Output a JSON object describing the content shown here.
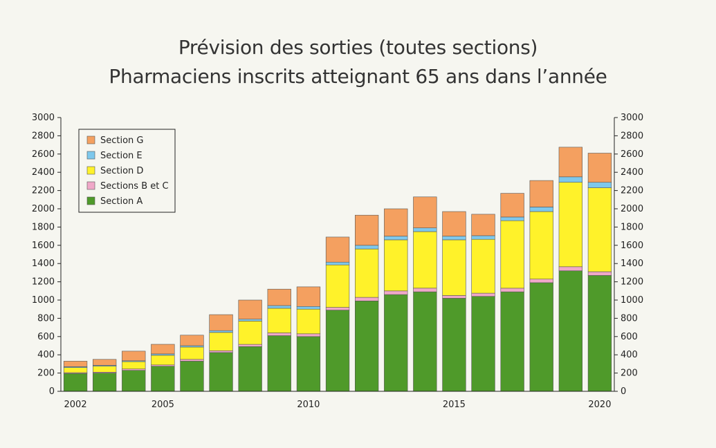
{
  "chart_data": {
    "type": "bar",
    "stacked": true,
    "title": "Prévision des sorties (toutes sections)",
    "subtitle": "Pharmaciens inscrits atteignant 65 ans dans l’année",
    "xlabel": "",
    "ylabel": "",
    "ylim": [
      0,
      3000
    ],
    "yticks": [
      0,
      200,
      400,
      600,
      800,
      1000,
      1200,
      1400,
      1600,
      1800,
      2000,
      2200,
      2400,
      2600,
      2800,
      3000
    ],
    "xtick_labels": [
      "2002",
      "2005",
      "2010",
      "2015",
      "2020"
    ],
    "categories": [
      "2002",
      "2003",
      "2004",
      "2005",
      "2006",
      "2007",
      "2008",
      "2009",
      "2010",
      "2011",
      "2012",
      "2013",
      "2014",
      "2015",
      "2016",
      "2017",
      "2018",
      "2019",
      "2020"
    ],
    "grid": false,
    "legend_position": "top-left",
    "series": [
      {
        "name": "Section A",
        "color": "#4f9a2a",
        "values": [
          195,
          200,
          230,
          275,
          330,
          425,
          490,
          610,
          600,
          890,
          990,
          1060,
          1090,
          1020,
          1040,
          1090,
          1190,
          1320,
          1270
        ]
      },
      {
        "name": "Sections B et C",
        "color": "#f0a8c8",
        "values": [
          10,
          10,
          15,
          15,
          20,
          20,
          25,
          30,
          30,
          30,
          40,
          40,
          40,
          30,
          35,
          40,
          40,
          45,
          40
        ]
      },
      {
        "name": "Section D",
        "color": "#fff22a",
        "values": [
          55,
          65,
          80,
          105,
          135,
          200,
          255,
          270,
          270,
          465,
          530,
          560,
          620,
          610,
          590,
          740,
          740,
          925,
          920
        ]
      },
      {
        "name": "Section E",
        "color": "#7ec8ec",
        "values": [
          10,
          10,
          10,
          15,
          15,
          20,
          20,
          30,
          30,
          30,
          40,
          40,
          40,
          40,
          40,
          40,
          50,
          60,
          60
        ]
      },
      {
        "name": "Section G",
        "color": "#f4a060",
        "values": [
          60,
          65,
          105,
          105,
          115,
          175,
          210,
          180,
          215,
          275,
          330,
          300,
          340,
          270,
          235,
          260,
          290,
          325,
          320
        ]
      }
    ]
  }
}
